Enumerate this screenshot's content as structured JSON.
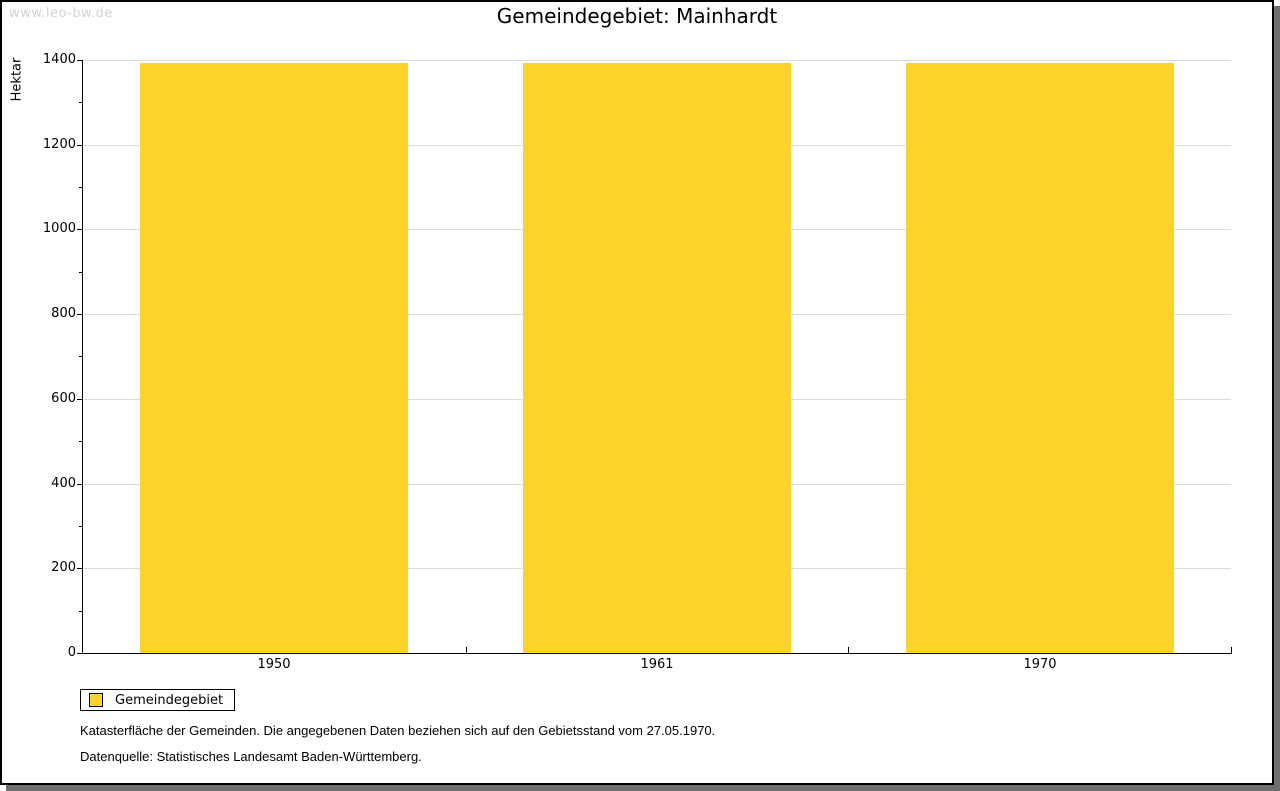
{
  "watermark": "www.leo-bw.de",
  "chart_data": {
    "type": "bar",
    "title": "Gemeindegebiet: Mainhardt",
    "ylabel": "Hektar",
    "xlabel": "",
    "categories": [
      "1950",
      "1961",
      "1970"
    ],
    "series": [
      {
        "name": "Gemeindegebiet",
        "values": [
          1393,
          1393,
          1393
        ]
      }
    ],
    "ylim": [
      0,
      1400
    ],
    "ytick_interval": 200,
    "yminor_interval": 100,
    "ytick_labels": [
      "0",
      "200",
      "400",
      "600",
      "800",
      "1000",
      "1200",
      "1400"
    ],
    "grid": true,
    "legend_position": "bottom-left",
    "colors": {
      "bar": "#FCD32B",
      "grid": "#DCDCDC",
      "axis": "#000000",
      "page_shadow": "#6F6F6F",
      "watermark_text": "#D3D3D3"
    }
  },
  "legend": {
    "entries": [
      {
        "label": "Gemeindegebiet",
        "swatch_color": "#FCD32B"
      }
    ]
  },
  "footnotes": [
    "Katasterfläche der Gemeinden. Die angegebenen Daten beziehen sich auf den Gebietsstand vom 27.05.1970.",
    "Datenquelle: Statistisches Landesamt Baden-Württemberg."
  ]
}
